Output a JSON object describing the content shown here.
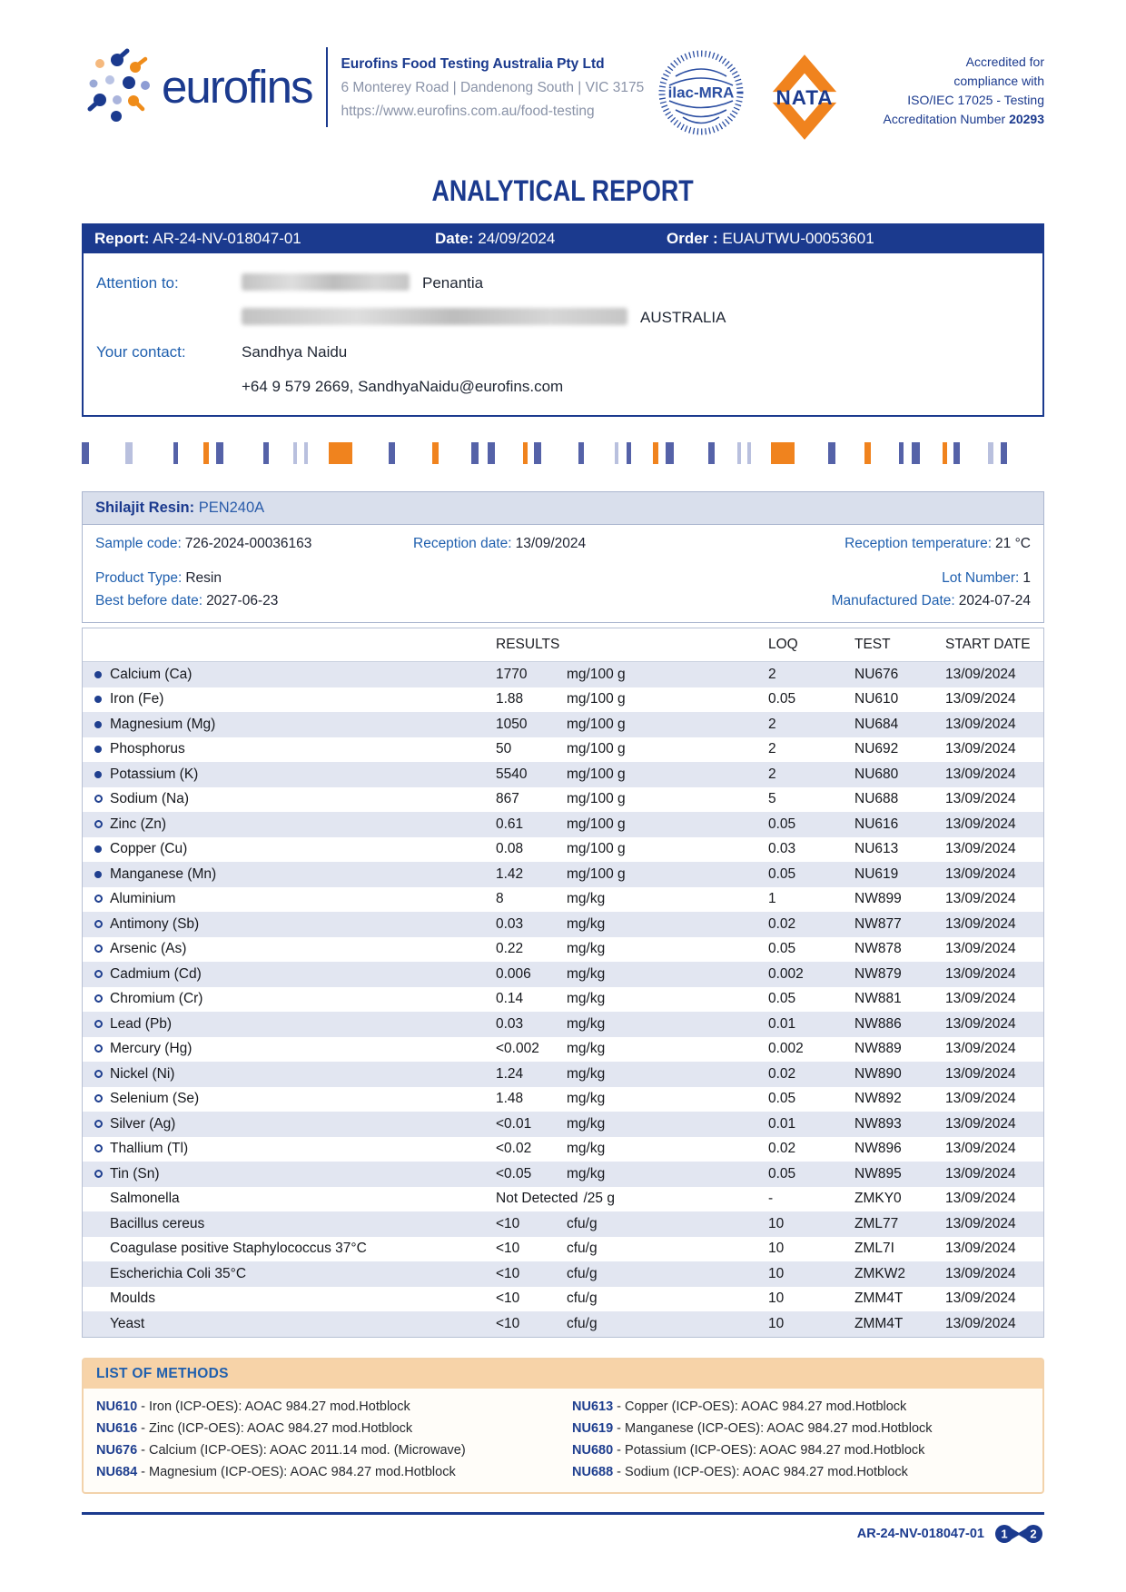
{
  "colors": {
    "brand_navy": "#1b3a8e",
    "brand_orange": "#f0831e",
    "label_blue": "#1f5fae",
    "row_alt": "#e2e6f1",
    "methods_peach": "#f7d3a8"
  },
  "header": {
    "logo_text": "eurofins",
    "company_name": "Eurofins Food Testing Australia Pty Ltd",
    "address": "6 Monterey Road | Dandenong South | VIC 3175",
    "website": "https://www.eurofins.com.au/food-testing",
    "ilac_label": "ilac-MRA",
    "nata_label": "NATA",
    "acc_line1": "Accredited for",
    "acc_line2": "compliance with",
    "acc_line3": "ISO/IEC 17025 - Testing",
    "acc_number_label": "Accreditation Number ",
    "acc_number": "20293"
  },
  "page": {
    "title": "ANALYTICAL REPORT"
  },
  "report_bar": {
    "report_label": "Report:",
    "report_value": " AR-24-NV-018047-01",
    "date_label": "Date:",
    "date_value": " 24/09/2024",
    "order_label": "Order :",
    "order_value": " EUAUTWU-00053601"
  },
  "attention": {
    "attention_label": "Attention to:",
    "company": "Penantia",
    "country": "AUSTRALIA",
    "contact_label": "Your contact:",
    "contact_name": "Sandhya Naidu",
    "contact_details": "+64 9 579 2669, SandhyaNaidu@eurofins.com"
  },
  "barcode": {
    "segments": [
      {
        "t": "b",
        "w": 8,
        "g": 36
      },
      {
        "t": "l",
        "w": 8,
        "g": 40
      },
      {
        "t": "b",
        "w": 5,
        "g": 24
      },
      {
        "t": "o",
        "w": 6,
        "g": 3
      },
      {
        "t": "b",
        "w": 8,
        "g": 40
      },
      {
        "t": "b",
        "w": 6,
        "g": 22
      },
      {
        "t": "l",
        "w": 4,
        "g": 4
      },
      {
        "t": "l",
        "w": 4,
        "g": 18
      },
      {
        "t": "o",
        "w": 26,
        "g": 36
      },
      {
        "t": "b",
        "w": 7,
        "g": 36
      },
      {
        "t": "o",
        "w": 7,
        "g": 32
      },
      {
        "t": "b",
        "w": 8,
        "g": 6
      },
      {
        "t": "b",
        "w": 8,
        "g": 26
      },
      {
        "t": "o",
        "w": 5,
        "g": 3
      },
      {
        "t": "b",
        "w": 8,
        "g": 36
      },
      {
        "t": "b",
        "w": 6,
        "g": 30
      },
      {
        "t": "l",
        "w": 4,
        "g": 4
      },
      {
        "t": "b",
        "w": 5,
        "g": 20
      },
      {
        "t": "o",
        "w": 6,
        "g": 3
      },
      {
        "t": "b",
        "w": 9,
        "g": 34
      },
      {
        "t": "b",
        "w": 7,
        "g": 20
      },
      {
        "t": "l",
        "w": 4,
        "g": 3
      },
      {
        "t": "l",
        "w": 4,
        "g": 18
      },
      {
        "t": "o",
        "w": 26,
        "g": 32
      },
      {
        "t": "b",
        "w": 8,
        "g": 28
      },
      {
        "t": "o",
        "w": 7,
        "g": 26
      },
      {
        "t": "b",
        "w": 5,
        "g": 5
      },
      {
        "t": "b",
        "w": 9,
        "g": 20
      },
      {
        "t": "o",
        "w": 5,
        "g": 3
      },
      {
        "t": "b",
        "w": 7,
        "g": 26
      },
      {
        "t": "l",
        "w": 6,
        "g": 4
      },
      {
        "t": "b",
        "w": 7,
        "g": 44
      },
      {
        "t": "o",
        "w": 10,
        "g": 18
      },
      {
        "t": "l",
        "w": 18,
        "g": 7
      },
      {
        "t": "b",
        "w": 8,
        "g": 20
      },
      {
        "t": "l",
        "w": 5,
        "g": 5
      },
      {
        "t": "b",
        "w": 8,
        "g": 0
      }
    ]
  },
  "sample": {
    "name_label": "Shilajit Resin:",
    "name_value": " PEN240A",
    "sample_code_label": "Sample code:",
    "sample_code": "726-2024-00036163",
    "reception_date_label": "Reception date:",
    "reception_date": "13/09/2024",
    "reception_temp_label": "Reception temperature:",
    "reception_temp": "21 °C",
    "product_type_label": "Product Type:",
    "product_type": "Resin",
    "lot_label": "Lot Number:",
    "lot": "1",
    "best_before_label": "Best before date:",
    "best_before": "2027-06-23",
    "manufactured_label": "Manufactured Date:",
    "manufactured": "2024-07-24"
  },
  "results": {
    "headers": {
      "results": "RESULTS",
      "loq": "LOQ",
      "test": "TEST",
      "date": "START DATE"
    },
    "rows": [
      {
        "bullet": "filled",
        "analyte": "Calcium (Ca)",
        "result": "1770",
        "unit": "mg/100 g",
        "loq": "2",
        "test": "NU676",
        "date": "13/09/2024"
      },
      {
        "bullet": "filled",
        "analyte": "Iron (Fe)",
        "result": "1.88",
        "unit": "mg/100 g",
        "loq": "0.05",
        "test": "NU610",
        "date": "13/09/2024"
      },
      {
        "bullet": "filled",
        "analyte": "Magnesium (Mg)",
        "result": "1050",
        "unit": "mg/100 g",
        "loq": "2",
        "test": "NU684",
        "date": "13/09/2024"
      },
      {
        "bullet": "filled",
        "analyte": "Phosphorus",
        "result": "50",
        "unit": "mg/100 g",
        "loq": "2",
        "test": "NU692",
        "date": "13/09/2024"
      },
      {
        "bullet": "filled",
        "analyte": "Potassium (K)",
        "result": "5540",
        "unit": "mg/100 g",
        "loq": "2",
        "test": "NU680",
        "date": "13/09/2024"
      },
      {
        "bullet": "open",
        "analyte": "Sodium (Na)",
        "result": "867",
        "unit": "mg/100 g",
        "loq": "5",
        "test": "NU688",
        "date": "13/09/2024"
      },
      {
        "bullet": "open",
        "analyte": "Zinc (Zn)",
        "result": "0.61",
        "unit": "mg/100 g",
        "loq": "0.05",
        "test": "NU616",
        "date": "13/09/2024"
      },
      {
        "bullet": "filled",
        "analyte": "Copper (Cu)",
        "result": "0.08",
        "unit": "mg/100 g",
        "loq": "0.03",
        "test": "NU613",
        "date": "13/09/2024"
      },
      {
        "bullet": "filled",
        "analyte": "Manganese (Mn)",
        "result": "1.42",
        "unit": "mg/100 g",
        "loq": "0.05",
        "test": "NU619",
        "date": "13/09/2024"
      },
      {
        "bullet": "open",
        "analyte": "Aluminium",
        "result": "8",
        "unit": "mg/kg",
        "loq": "1",
        "test": "NW899",
        "date": "13/09/2024"
      },
      {
        "bullet": "open",
        "analyte": "Antimony (Sb)",
        "result": "0.03",
        "unit": "mg/kg",
        "loq": "0.02",
        "test": "NW877",
        "date": "13/09/2024"
      },
      {
        "bullet": "open",
        "analyte": "Arsenic (As)",
        "result": "0.22",
        "unit": "mg/kg",
        "loq": "0.05",
        "test": "NW878",
        "date": "13/09/2024"
      },
      {
        "bullet": "open",
        "analyte": "Cadmium (Cd)",
        "result": "0.006",
        "unit": "mg/kg",
        "loq": "0.002",
        "test": "NW879",
        "date": "13/09/2024"
      },
      {
        "bullet": "open",
        "analyte": "Chromium (Cr)",
        "result": "0.14",
        "unit": "mg/kg",
        "loq": "0.05",
        "test": "NW881",
        "date": "13/09/2024"
      },
      {
        "bullet": "open",
        "analyte": "Lead (Pb)",
        "result": "0.03",
        "unit": "mg/kg",
        "loq": "0.01",
        "test": "NW886",
        "date": "13/09/2024"
      },
      {
        "bullet": "open",
        "analyte": "Mercury (Hg)",
        "result": "<0.002",
        "unit": "mg/kg",
        "loq": "0.002",
        "test": "NW889",
        "date": "13/09/2024"
      },
      {
        "bullet": "open",
        "analyte": "Nickel (Ni)",
        "result": "1.24",
        "unit": "mg/kg",
        "loq": "0.02",
        "test": "NW890",
        "date": "13/09/2024"
      },
      {
        "bullet": "open",
        "analyte": "Selenium (Se)",
        "result": "1.48",
        "unit": "mg/kg",
        "loq": "0.05",
        "test": "NW892",
        "date": "13/09/2024"
      },
      {
        "bullet": "open",
        "analyte": "Silver (Ag)",
        "result": "<0.01",
        "unit": "mg/kg",
        "loq": "0.01",
        "test": "NW893",
        "date": "13/09/2024"
      },
      {
        "bullet": "open",
        "analyte": "Thallium (Tl)",
        "result": "<0.02",
        "unit": "mg/kg",
        "loq": "0.02",
        "test": "NW896",
        "date": "13/09/2024"
      },
      {
        "bullet": "open",
        "analyte": "Tin (Sn)",
        "result": "<0.05",
        "unit": "mg/kg",
        "loq": "0.05",
        "test": "NW895",
        "date": "13/09/2024"
      },
      {
        "bullet": "none",
        "analyte": "Salmonella",
        "result": "Not Detected",
        "unit": "/25 g",
        "loq": "-",
        "test": "ZMKY0",
        "date": "13/09/2024"
      },
      {
        "bullet": "none",
        "analyte": "Bacillus cereus",
        "result": "<10",
        "unit": "cfu/g",
        "loq": "10",
        "test": "ZML77",
        "date": "13/09/2024"
      },
      {
        "bullet": "none",
        "analyte": "Coagulase positive Staphylococcus 37°C",
        "result": "<10",
        "unit": "cfu/g",
        "loq": "10",
        "test": "ZML7I",
        "date": "13/09/2024"
      },
      {
        "bullet": "none",
        "analyte": "Escherichia Coli 35°C",
        "result": "<10",
        "unit": "cfu/g",
        "loq": "10",
        "test": "ZMKW2",
        "date": "13/09/2024"
      },
      {
        "bullet": "none",
        "analyte": "Moulds",
        "result": "<10",
        "unit": "cfu/g",
        "loq": "10",
        "test": "ZMM4T",
        "date": "13/09/2024"
      },
      {
        "bullet": "none",
        "analyte": "Yeast",
        "result": "<10",
        "unit": "cfu/g",
        "loq": "10",
        "test": "ZMM4T",
        "date": "13/09/2024"
      }
    ]
  },
  "methods": {
    "title": "LIST OF METHODS",
    "items": [
      {
        "code": "NU610",
        "desc": " - Iron (ICP-OES): AOAC 984.27 mod.Hotblock"
      },
      {
        "code": "NU613",
        "desc": " - Copper (ICP-OES): AOAC 984.27 mod.Hotblock"
      },
      {
        "code": "NU616",
        "desc": " - Zinc (ICP-OES): AOAC 984.27 mod.Hotblock"
      },
      {
        "code": "NU619",
        "desc": " - Manganese (ICP-OES): AOAC 984.27 mod.Hotblock"
      },
      {
        "code": "NU676",
        "desc": " - Calcium (ICP-OES): AOAC 2011.14 mod. (Microwave)"
      },
      {
        "code": "NU680",
        "desc": " - Potassium (ICP-OES): AOAC 984.27 mod.Hotblock"
      },
      {
        "code": "NU684",
        "desc": " - Magnesium (ICP-OES): AOAC 984.27 mod.Hotblock"
      },
      {
        "code": "NU688",
        "desc": " - Sodium (ICP-OES): AOAC 984.27 mod.Hotblock"
      }
    ]
  },
  "footer": {
    "report_id": "AR-24-NV-018047-01",
    "page_current": "1",
    "page_total": "2"
  }
}
